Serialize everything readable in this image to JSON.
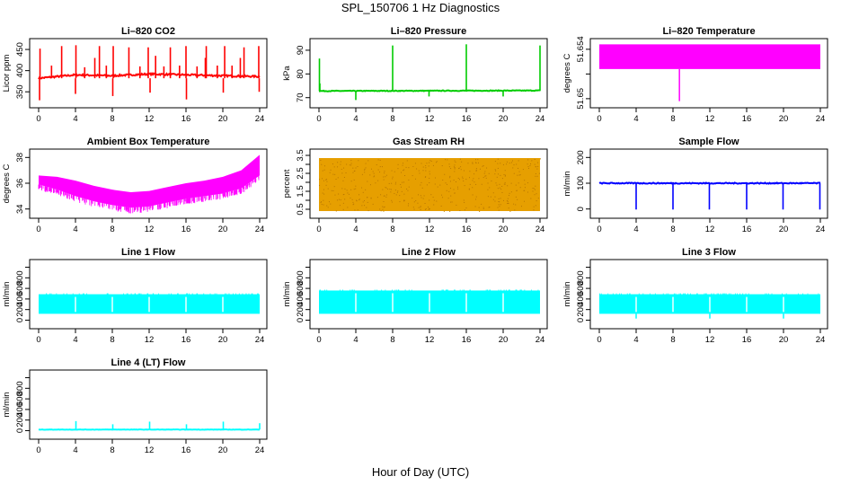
{
  "figure": {
    "title": "SPL_150706  1 Hz Diagnostics",
    "xlabel": "Hour of Day (UTC)"
  },
  "chart_data": [
    {
      "type": "line",
      "title": "Li–820 CO2",
      "ylabel": "Licor ppm",
      "color": "#ff0000",
      "xlim": [
        0,
        24
      ],
      "xticks": [
        0,
        4,
        8,
        12,
        16,
        20,
        24
      ],
      "ylim": [
        325,
        465
      ],
      "yticks": [
        350,
        400,
        450
      ],
      "baseline": [
        [
          0,
          382
        ],
        [
          4,
          390
        ],
        [
          8,
          388
        ],
        [
          12,
          392
        ],
        [
          16,
          390
        ],
        [
          20,
          388
        ],
        [
          24,
          386
        ]
      ],
      "band": 4,
      "spikes_up": [
        [
          0.15,
          452
        ],
        [
          1.4,
          412
        ],
        [
          2.5,
          458
        ],
        [
          4.05,
          460
        ],
        [
          5.0,
          408
        ],
        [
          6.1,
          430
        ],
        [
          6.6,
          458
        ],
        [
          7.35,
          412
        ],
        [
          8.1,
          458
        ],
        [
          9.8,
          455
        ],
        [
          11.0,
          410
        ],
        [
          11.9,
          455
        ],
        [
          12.7,
          435
        ],
        [
          13.6,
          410
        ],
        [
          14.3,
          455
        ],
        [
          15.3,
          412
        ],
        [
          16.0,
          458
        ],
        [
          17.2,
          410
        ],
        [
          18.1,
          430
        ],
        [
          18.2,
          458
        ],
        [
          19.4,
          412
        ],
        [
          20.2,
          458
        ],
        [
          21.0,
          412
        ],
        [
          21.9,
          430
        ],
        [
          22.3,
          455
        ],
        [
          23.9,
          458
        ]
      ],
      "spikes_down": [
        [
          0.1,
          330
        ],
        [
          4.0,
          345
        ],
        [
          8.05,
          340
        ],
        [
          12.1,
          348
        ],
        [
          16.05,
          332
        ],
        [
          20.05,
          348
        ],
        [
          23.95,
          350
        ]
      ]
    },
    {
      "type": "line",
      "title": "Li–820 Pressure",
      "ylabel": "kPa",
      "color": "#00cc00",
      "xlim": [
        0,
        24
      ],
      "xticks": [
        0,
        4,
        8,
        12,
        16,
        20,
        24
      ],
      "ylim": [
        68,
        93
      ],
      "yticks": [
        70,
        80,
        90
      ],
      "baseline": [
        [
          0,
          72.8
        ],
        [
          24,
          73.0
        ]
      ],
      "band": 0.3,
      "spikes_up": [
        [
          0.05,
          86.5
        ],
        [
          0.1,
          76
        ],
        [
          8.0,
          92
        ],
        [
          16.0,
          92.5
        ],
        [
          24.0,
          92
        ]
      ],
      "spikes_down": [
        [
          4.0,
          69
        ],
        [
          11.95,
          70.5
        ],
        [
          20.0,
          70.5
        ]
      ]
    },
    {
      "type": "area",
      "title": "Li–820 Temperature",
      "ylabel": "degrees C",
      "color": "#ff00ff",
      "xlim": [
        0,
        24
      ],
      "xticks": [
        0,
        4,
        8,
        12,
        16,
        20,
        24
      ],
      "ylim": [
        51.649,
        51.64
      ],
      "ylim_range": [
        51.6497,
        51.6545
      ],
      "yticks": [
        51.65,
        51.652,
        51.654
      ],
      "ytick_labels": [
        "51.65",
        "",
        "51.654"
      ],
      "fill_range": [
        51.6524,
        51.6544
      ],
      "dips": [
        [
          8.7,
          51.6498
        ]
      ]
    },
    {
      "type": "area",
      "title": "Ambient Box Temperature",
      "ylabel": "degrees C",
      "color": "#ff00ff",
      "xlim": [
        0,
        24
      ],
      "xticks": [
        0,
        4,
        8,
        12,
        16,
        20,
        24
      ],
      "ylim_range": [
        33.7,
        38.3
      ],
      "yticks": [
        34,
        36,
        38
      ],
      "lower": [
        [
          0,
          35.9
        ],
        [
          2,
          35.5
        ],
        [
          4,
          35.0
        ],
        [
          6,
          34.6
        ],
        [
          8,
          34.3
        ],
        [
          10,
          34.1
        ],
        [
          12,
          34.2
        ],
        [
          14,
          34.5
        ],
        [
          16,
          34.8
        ],
        [
          18,
          35.0
        ],
        [
          20,
          35.2
        ],
        [
          22,
          35.6
        ],
        [
          24,
          36.6
        ]
      ],
      "upper": [
        [
          0,
          36.6
        ],
        [
          2,
          36.5
        ],
        [
          4,
          36.2
        ],
        [
          6,
          35.8
        ],
        [
          8,
          35.5
        ],
        [
          10,
          35.3
        ],
        [
          12,
          35.4
        ],
        [
          14,
          35.7
        ],
        [
          16,
          36.0
        ],
        [
          18,
          36.2
        ],
        [
          20,
          36.5
        ],
        [
          22,
          37.0
        ],
        [
          24,
          38.2
        ]
      ]
    },
    {
      "type": "area",
      "title": "Gas Stream RH",
      "ylabel": "percent",
      "color": "#e69f00",
      "xlim": [
        0,
        24
      ],
      "xticks": [
        0,
        4,
        8,
        12,
        16,
        20,
        24
      ],
      "ylim_range": [
        0.3,
        3.6
      ],
      "yticks": [
        0.5,
        1,
        1.5,
        2,
        2.5,
        3,
        3.5
      ],
      "ytick_labels": [
        "0.5",
        "1.5",
        "2.5",
        "3.5"
      ],
      "ytick_label_values": [
        0.5,
        1.5,
        2.5,
        3.5
      ],
      "fill_range": [
        0.4,
        3.35
      ]
    },
    {
      "type": "line",
      "title": "Sample Flow",
      "ylabel": "ml/min",
      "color": "#0000ff",
      "xlim": [
        0,
        24
      ],
      "xticks": [
        0,
        4,
        8,
        12,
        16,
        20,
        24
      ],
      "ylim_range": [
        -15,
        215
      ],
      "yticks": [
        0,
        100,
        200
      ],
      "baseline": [
        [
          0,
          100
        ],
        [
          24,
          100
        ]
      ],
      "band": 4,
      "spikes_down": [
        [
          4.0,
          -2
        ],
        [
          8.0,
          -2
        ],
        [
          11.95,
          -2
        ],
        [
          16.0,
          -2
        ],
        [
          19.95,
          -2
        ],
        [
          23.95,
          -2
        ]
      ]
    },
    {
      "type": "area",
      "title": "Line 1 Flow",
      "ylabel": "ml/min",
      "color": "#00ffff",
      "xlim": [
        0,
        24
      ],
      "xticks": [
        0,
        4,
        8,
        12,
        16,
        20,
        24
      ],
      "ylim_range": [
        -60,
        1060
      ],
      "yticks": [
        0,
        200,
        400,
        600,
        800,
        1000
      ],
      "ytick_labels": [
        "0",
        "200",
        "400",
        "600",
        "800",
        ""
      ],
      "fill_range": [
        120,
        490
      ],
      "gaps": [
        4.0,
        8.0,
        12.0,
        16.0,
        20.0
      ]
    },
    {
      "type": "area",
      "title": "Line 2 Flow",
      "ylabel": "ml/min",
      "color": "#00ffff",
      "xlim": [
        0,
        24
      ],
      "xticks": [
        0,
        4,
        8,
        12,
        16,
        20,
        24
      ],
      "ylim_range": [
        -60,
        1060
      ],
      "yticks": [
        0,
        200,
        400,
        600,
        800,
        1000
      ],
      "ytick_labels": [
        "0",
        "200",
        "400",
        "600",
        "800",
        ""
      ],
      "fill_range": [
        120,
        560
      ],
      "gaps": [
        4.0,
        8.0,
        12.0,
        16.0,
        20.0
      ]
    },
    {
      "type": "area",
      "title": "Line 3 Flow",
      "ylabel": "ml/min",
      "color": "#00ffff",
      "xlim": [
        0,
        24
      ],
      "xticks": [
        0,
        4,
        8,
        12,
        16,
        20,
        24
      ],
      "ylim_range": [
        -60,
        1060
      ],
      "yticks": [
        0,
        200,
        400,
        600,
        800,
        1000
      ],
      "ytick_labels": [
        "0",
        "200",
        "400",
        "600",
        "800",
        ""
      ],
      "fill_range": [
        120,
        490
      ],
      "gaps": [
        4.0,
        8.0,
        12.0,
        16.0,
        20.0
      ],
      "dips": [
        [
          4.0,
          30
        ],
        [
          12.0,
          30
        ],
        [
          20.0,
          30
        ]
      ]
    },
    {
      "type": "line",
      "title": "Line 4 (LT) Flow",
      "ylabel": "ml/min",
      "color": "#00ffff",
      "xlim": [
        0,
        24
      ],
      "xticks": [
        0,
        4,
        8,
        12,
        16,
        20,
        24
      ],
      "ylim_range": [
        -60,
        1060
      ],
      "yticks": [
        0,
        200,
        400,
        600,
        800,
        1000
      ],
      "ytick_labels": [
        "0",
        "200",
        "400",
        "600",
        "800",
        ""
      ],
      "baseline": [
        [
          0,
          20
        ],
        [
          24,
          20
        ]
      ],
      "band": 6,
      "spikes_up": [
        [
          4.05,
          180
        ],
        [
          8.05,
          120
        ],
        [
          12.05,
          170
        ],
        [
          16.05,
          120
        ],
        [
          20.05,
          170
        ],
        [
          24.0,
          140
        ]
      ]
    }
  ]
}
